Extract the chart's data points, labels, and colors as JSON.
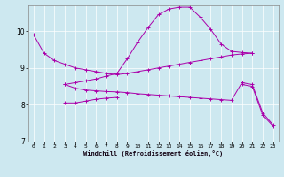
{
  "xlabel": "Windchill (Refroidissement éolien,°C)",
  "background_color": "#cde8f0",
  "line_color": "#aa00aa",
  "xlim": [
    -0.5,
    23.5
  ],
  "ylim": [
    7,
    10.7
  ],
  "yticks": [
    7,
    8,
    9,
    10
  ],
  "xticks": [
    0,
    1,
    2,
    3,
    4,
    5,
    6,
    7,
    8,
    9,
    10,
    11,
    12,
    13,
    14,
    15,
    16,
    17,
    18,
    19,
    20,
    21,
    22,
    23
  ],
  "hours": [
    0,
    1,
    2,
    3,
    4,
    5,
    6,
    7,
    8,
    9,
    10,
    11,
    12,
    13,
    14,
    15,
    16,
    17,
    18,
    19,
    20,
    21,
    22,
    23
  ],
  "line1": [
    9.9,
    9.4,
    9.2,
    9.1,
    9.0,
    8.95,
    8.9,
    8.85,
    8.82,
    8.85,
    8.9,
    8.95,
    9.0,
    9.05,
    9.1,
    9.15,
    9.2,
    9.25,
    9.3,
    9.35,
    9.38,
    9.4,
    null,
    null
  ],
  "line2": [
    null,
    null,
    null,
    8.55,
    8.6,
    8.65,
    8.7,
    8.78,
    8.85,
    9.25,
    9.7,
    10.1,
    10.45,
    10.6,
    10.65,
    10.65,
    10.38,
    10.05,
    9.65,
    9.45,
    9.42,
    9.4,
    null,
    null
  ],
  "line3": [
    null,
    null,
    null,
    8.55,
    8.45,
    8.4,
    8.38,
    8.36,
    8.35,
    8.33,
    8.3,
    8.28,
    8.26,
    8.24,
    8.22,
    8.2,
    8.18,
    8.16,
    8.14,
    8.12,
    8.6,
    8.55,
    7.78,
    7.45
  ],
  "line4": [
    null,
    null,
    null,
    8.05,
    8.05,
    8.1,
    8.15,
    8.18,
    8.2,
    null,
    null,
    null,
    null,
    null,
    null,
    null,
    null,
    null,
    null,
    null,
    8.55,
    8.5,
    7.72,
    7.42
  ]
}
